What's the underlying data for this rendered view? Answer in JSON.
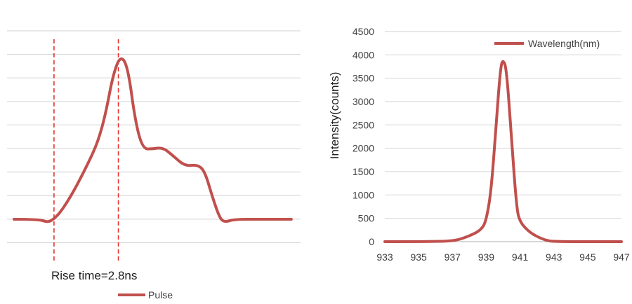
{
  "chart_data": [
    {
      "type": "line",
      "title": "",
      "xlabel": "",
      "ylabel": "",
      "grid": true,
      "legend_position": "bottom",
      "series": [
        {
          "name": "Pulse",
          "color": "#c0504d",
          "points": [
            [
              0,
              0
            ],
            [
              0.5,
              0
            ],
            [
              0.68,
              -0.04
            ],
            [
              0.8,
              0
            ],
            [
              0.95,
              0.1
            ],
            [
              1.2,
              0.35
            ],
            [
              1.5,
              0.72
            ],
            [
              1.7,
              1.0
            ],
            [
              1.85,
              1.35
            ],
            [
              2.0,
              1.85
            ],
            [
              2.15,
              2.1
            ],
            [
              2.3,
              1.95
            ],
            [
              2.45,
              1.25
            ],
            [
              2.6,
              0.9
            ],
            [
              2.8,
              0.9
            ],
            [
              3.0,
              0.92
            ],
            [
              3.2,
              0.82
            ],
            [
              3.45,
              0.68
            ],
            [
              3.7,
              0.7
            ],
            [
              3.85,
              0.62
            ],
            [
              4.0,
              0.3
            ],
            [
              4.15,
              0.02
            ],
            [
              4.25,
              -0.04
            ],
            [
              4.45,
              0
            ],
            [
              5.0,
              0
            ],
            [
              5.6,
              0
            ]
          ]
        }
      ],
      "vertical_markers": [
        0.8,
        2.1
      ],
      "annotation": "Rise time=2.8ns"
    },
    {
      "type": "line",
      "title": "",
      "xlabel": "",
      "ylabel": "Intensity(counts)",
      "xlim": [
        933,
        947
      ],
      "ylim": [
        0,
        4500
      ],
      "x_ticks": [
        "933",
        "935",
        "937",
        "939",
        "941",
        "943",
        "945",
        "947"
      ],
      "y_ticks": [
        "0",
        "500",
        "1000",
        "1500",
        "2000",
        "2500",
        "3000",
        "3500",
        "4000",
        "4500"
      ],
      "grid": true,
      "legend_position": "top-right",
      "series": [
        {
          "name": "Wavelength(nm)",
          "color": "#c0504d",
          "points": [
            [
              933,
              0
            ],
            [
              936,
              0
            ],
            [
              937.2,
              20
            ],
            [
              938,
              120
            ],
            [
              938.7,
              250
            ],
            [
              939.0,
              450
            ],
            [
              939.3,
              1100
            ],
            [
              939.6,
              2600
            ],
            [
              939.85,
              3750
            ],
            [
              940.0,
              3900
            ],
            [
              940.2,
              3700
            ],
            [
              940.5,
              2200
            ],
            [
              940.8,
              700
            ],
            [
              941.0,
              420
            ],
            [
              941.5,
              220
            ],
            [
              942.0,
              110
            ],
            [
              942.5,
              30
            ],
            [
              943,
              0
            ],
            [
              947,
              0
            ]
          ]
        }
      ]
    }
  ]
}
